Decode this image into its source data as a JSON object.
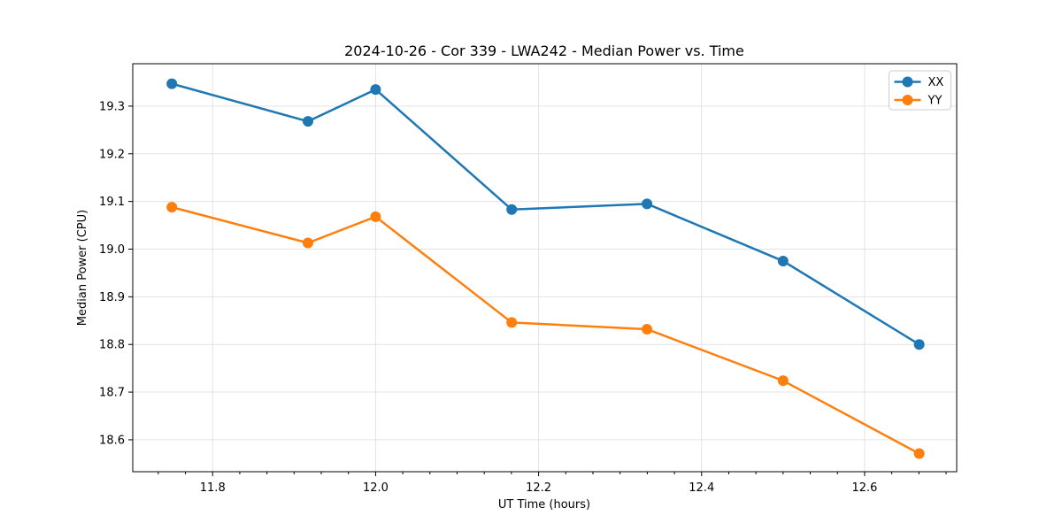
{
  "chart_data": {
    "type": "line",
    "title": "2024-10-26 - Cor 339 - LWA242 - Median Power vs. Time",
    "xlabel": "UT Time (hours)",
    "ylabel": "Median Power (CPU)",
    "x": [
      11.75,
      11.917,
      12.0,
      12.167,
      12.333,
      12.5,
      12.667
    ],
    "series": [
      {
        "name": "XX",
        "color": "#1f77b4",
        "values": [
          19.347,
          19.268,
          19.335,
          19.083,
          19.095,
          18.975,
          18.8
        ]
      },
      {
        "name": "YY",
        "color": "#ff7f0e",
        "values": [
          19.088,
          19.013,
          19.068,
          18.846,
          18.832,
          18.724,
          18.571
        ]
      }
    ],
    "xlim": [
      11.702,
      12.713
    ],
    "ylim": [
      18.533,
      19.389
    ],
    "xticks": [
      11.8,
      12.0,
      12.2,
      12.4,
      12.6
    ],
    "xtick_labels": [
      "11.8",
      "12.0",
      "12.2",
      "12.4",
      "12.6"
    ],
    "x_minor_step": 0.0333333,
    "yticks": [
      18.6,
      18.7,
      18.8,
      18.9,
      19.0,
      19.1,
      19.2,
      19.3
    ],
    "ytick_labels": [
      "18.6",
      "18.7",
      "18.8",
      "18.9",
      "19.0",
      "19.1",
      "19.2",
      "19.3"
    ],
    "grid": true,
    "grid_color": "#e3e3e3",
    "spine_color": "#000000",
    "background": "#ffffff",
    "legend": {
      "position": "upper right",
      "entries": [
        "XX",
        "YY"
      ]
    },
    "marker": "circle"
  }
}
